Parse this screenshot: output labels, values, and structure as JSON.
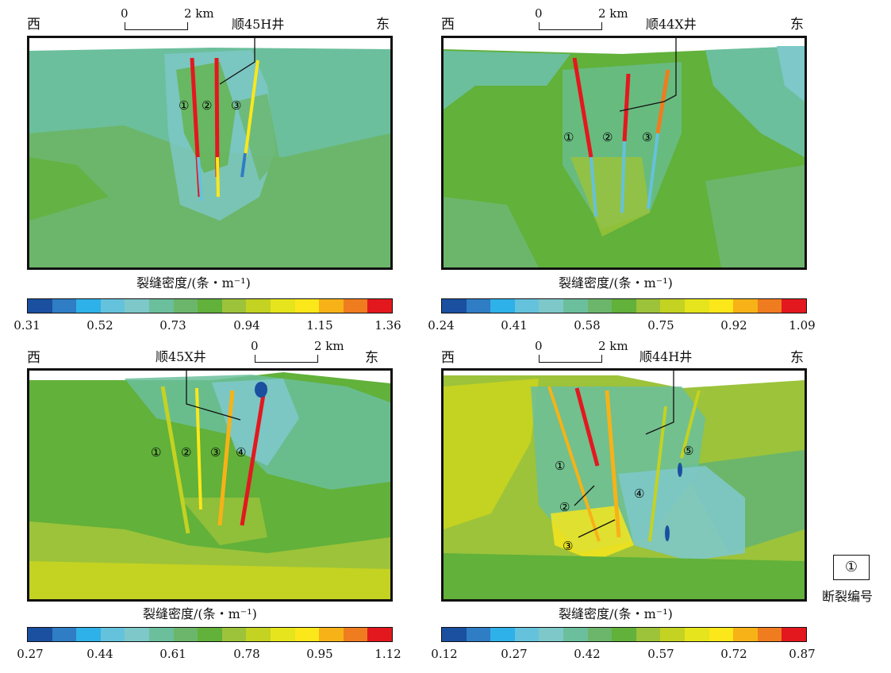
{
  "colors": [
    "#1b4fa0",
    "#2f7dc4",
    "#2eb1e8",
    "#65c2dc",
    "#7ec8c9",
    "#6bbf9c",
    "#6cb66b",
    "#61b13a",
    "#9cc33a",
    "#c4d222",
    "#e6e41c",
    "#fbe71a",
    "#f7b217",
    "#ef7c1f",
    "#e3181f"
  ],
  "legend": {
    "symbol": "①",
    "label": "断裂编号"
  },
  "panels": [
    {
      "id": "p1",
      "west": "西",
      "east": "东",
      "scale_zero": "0",
      "scale_end": "2 km",
      "well": "顺45H井",
      "cb_title": "裂缝密度/(条・m⁻¹)",
      "ticks": [
        "0.31",
        "0.52",
        "0.73",
        "0.94",
        "1.15",
        "1.36"
      ],
      "fault_labels": [
        "①",
        "②",
        "③"
      ]
    },
    {
      "id": "p2",
      "west": "西",
      "east": "东",
      "scale_zero": "0",
      "scale_end": "2 km",
      "well": "顺44X井",
      "cb_title": "裂缝密度/(条・m⁻¹)",
      "ticks": [
        "0.24",
        "0.41",
        "0.58",
        "0.75",
        "0.92",
        "1.09"
      ],
      "fault_labels": [
        "①",
        "②",
        "③"
      ]
    },
    {
      "id": "p3",
      "west": "西",
      "east": "东",
      "scale_zero": "0",
      "scale_end": "2 km",
      "well": "顺45X井",
      "cb_title": "裂缝密度/(条・m⁻¹)",
      "ticks": [
        "0.27",
        "0.44",
        "0.61",
        "0.78",
        "0.95",
        "1.12"
      ],
      "fault_labels": [
        "①",
        "②",
        "③",
        "④"
      ]
    },
    {
      "id": "p4",
      "west": "西",
      "east": "东",
      "scale_zero": "0",
      "scale_end": "2 km",
      "well": "顺44H井",
      "cb_title": "裂缝密度/(条・m⁻¹)",
      "ticks": [
        "0.12",
        "0.27",
        "0.42",
        "0.57",
        "0.72",
        "0.87"
      ],
      "fault_labels": [
        "①",
        "②",
        "③",
        "④",
        "⑤"
      ]
    }
  ]
}
